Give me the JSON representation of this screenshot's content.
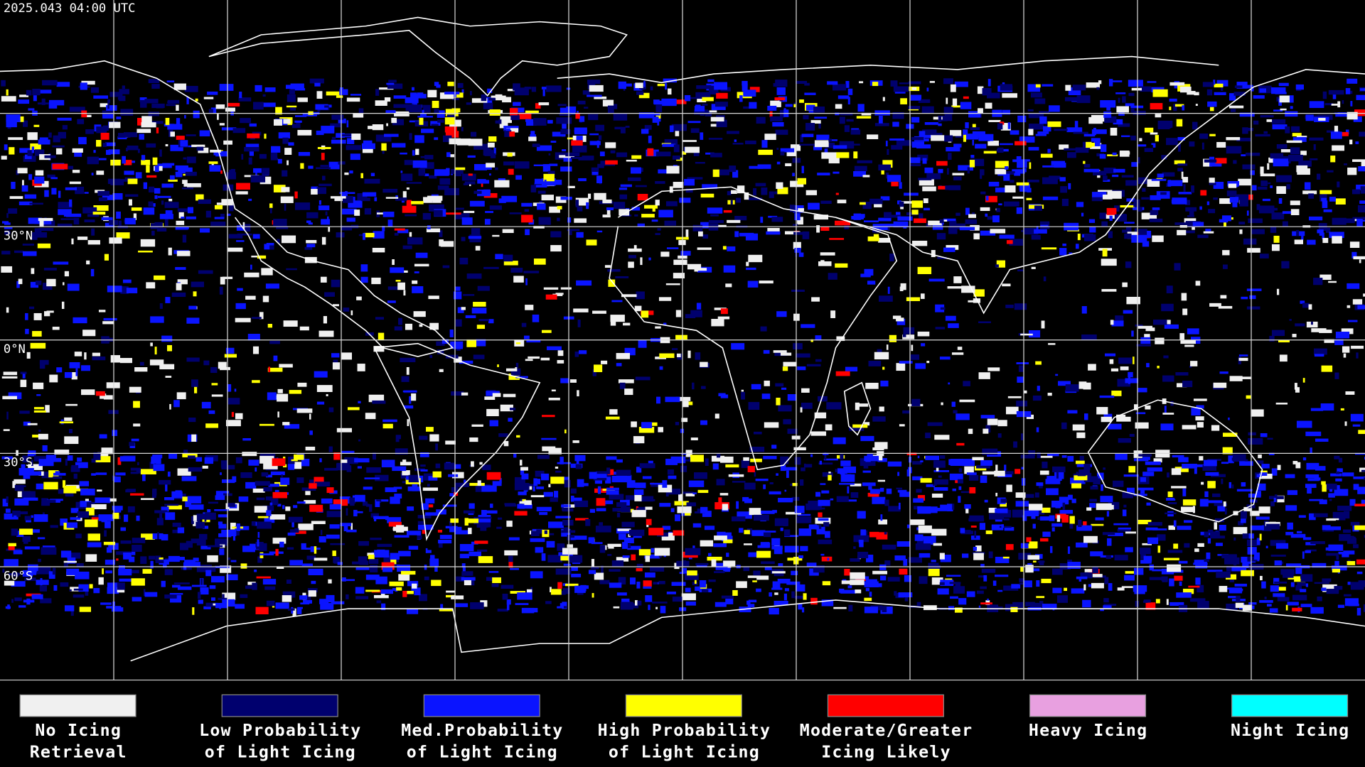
{
  "header": {
    "title": "2025.043 04:00 UTC"
  },
  "map": {
    "latitude_labels": [
      "30°N",
      "0°N",
      "30°S",
      "60°S"
    ]
  },
  "legend": [
    {
      "lines": [
        "No Icing",
        "Retrieval"
      ],
      "color": "#f0f0f0"
    },
    {
      "lines": [
        "Low Probability",
        "of Light Icing"
      ],
      "color": "#00006e"
    },
    {
      "lines": [
        "Med.Probability",
        "of Light Icing"
      ],
      "color": "#0a14ff"
    },
    {
      "lines": [
        "High Probability",
        "of Light Icing"
      ],
      "color": "#ffff00"
    },
    {
      "lines": [
        "Moderate/Greater",
        "Icing Likely"
      ],
      "color": "#ff0000"
    },
    {
      "lines": [
        "Heavy Icing"
      ],
      "color": "#e8a0e0"
    },
    {
      "lines": [
        "Night Icing"
      ],
      "color": "#00ffff"
    }
  ]
}
